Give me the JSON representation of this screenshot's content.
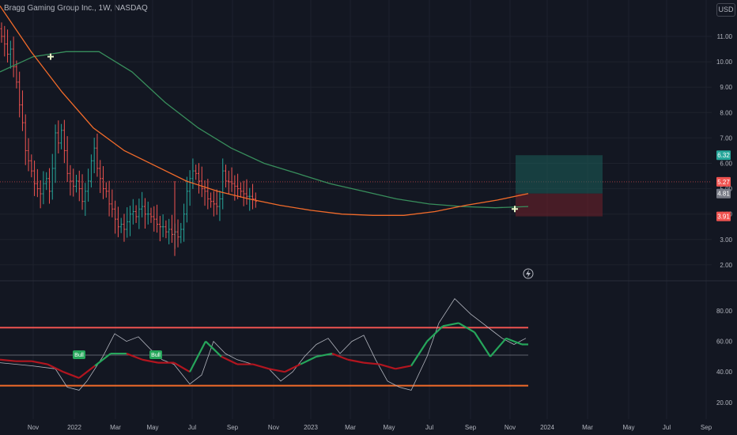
{
  "header": {
    "title": "Bragg Gaming Group Inc., 1W, NASDAQ",
    "currency": "USD"
  },
  "colors": {
    "background": "#131722",
    "up": "#26a69a",
    "down": "#ef5350",
    "ma_fast": "#f26b2a",
    "ma_slow": "#388e5c",
    "indicator_green": "#26a65b",
    "indicator_red": "#b2151f",
    "indicator_grey": "#b2b5be",
    "target_zone": "#1b5e5a",
    "stop_zone": "#6b1f2a"
  },
  "icons": {
    "lightning": "lightning-icon"
  },
  "chart_data": [
    {
      "type": "candlestick",
      "title": "Bragg Gaming Group Inc., 1W, NASDAQ",
      "ylim": [
        1.5,
        11.8
      ],
      "y_ticks": [
        "11.00",
        "10.00",
        "9.00",
        "8.00",
        "7.00",
        "6.00",
        "5.00",
        "4.00",
        "3.00",
        "2.00"
      ],
      "x_ticks": [
        "Nov",
        "2022",
        "Mar",
        "May",
        "Jul",
        "Sep",
        "Nov",
        "2023",
        "Mar",
        "May",
        "Jul",
        "Sep",
        "Nov",
        "2024",
        "Mar",
        "May",
        "Jul",
        "Sep"
      ],
      "price_labels": [
        {
          "text": "6.32",
          "value": 6.32,
          "color": "#26a69a"
        },
        {
          "text": "5.27",
          "value": 5.27,
          "color": "#ef5350"
        },
        {
          "text": "4.81",
          "value": 4.81,
          "color": "#787b86"
        },
        {
          "text": "3.91",
          "value": 3.91,
          "color": "#ef5350"
        }
      ],
      "current_price": 5.27,
      "position": {
        "target": 6.32,
        "entry": 4.81,
        "stop": 3.91
      },
      "series": [
        {
          "name": "",
          "kind": "close_path",
          "x": [
            0,
            2,
            4,
            6,
            8,
            10,
            12,
            14,
            16,
            18,
            20,
            22,
            24,
            26,
            28,
            30,
            32,
            34,
            36,
            38,
            40,
            42,
            44,
            46,
            48,
            50,
            52,
            54,
            56,
            58,
            60,
            62,
            64,
            66,
            68,
            70,
            72,
            74,
            76,
            78,
            80,
            82,
            84,
            86,
            88,
            90,
            92,
            94,
            96,
            98,
            100,
            102,
            104,
            106,
            108,
            110,
            112,
            114,
            116,
            118,
            120,
            122,
            124,
            126,
            128,
            130,
            132,
            134,
            136,
            138,
            140,
            142,
            144,
            146,
            148,
            150,
            152,
            154,
            156,
            158,
            160,
            162,
            164,
            166,
            168,
            170,
            172,
            174,
            176,
            178,
            180,
            182,
            184,
            186,
            188,
            190,
            192,
            194,
            196,
            198,
            200,
            202,
            204,
            206,
            208,
            210,
            212,
            214,
            216,
            218,
            220
          ],
          "y": [
            11.0,
            10.7,
            10.3,
            10.5,
            9.8,
            9.2,
            8.3,
            7.6,
            6.5,
            6.1,
            5.7,
            5.2,
            5.0,
            4.8,
            5.2,
            5.4,
            4.9,
            5.8,
            7.2,
            6.8,
            7.3,
            6.5,
            5.6,
            5.3,
            5.1,
            5.3,
            5.0,
            4.5,
            4.9,
            5.3,
            6.1,
            6.6,
            5.8,
            5.4,
            5.0,
            4.9,
            4.4,
            4.2,
            3.8,
            3.5,
            3.6,
            3.4,
            3.7,
            4.0,
            4.1,
            3.9,
            4.2,
            4.3,
            4.0,
            4.0,
            3.9,
            3.8,
            3.6,
            3.5,
            3.5,
            3.3,
            3.4,
            3.2,
            3.3,
            3.1,
            3.4,
            4.0,
            4.9,
            5.4,
            5.7,
            5.6,
            5.3,
            5.0,
            4.9,
            4.6,
            4.5,
            4.4,
            4.3,
            4.6,
            5.7,
            5.3,
            5.27,
            5.2,
            5.1,
            5.0,
            4.9,
            4.8,
            4.7,
            4.7,
            4.6,
            4.5,
            4.5,
            4.4,
            4.4,
            4.3,
            4.3,
            4.2,
            4.2,
            4.2,
            4.1,
            4.1,
            4.1,
            4.1,
            4.0,
            4.0,
            4.0,
            4.0,
            4.0,
            4.0,
            4.0,
            4.0,
            4.0,
            4.0,
            4.0,
            4.0,
            4.0
          ]
        },
        {
          "name": "",
          "kind": "ma_fast",
          "y": [
            12.2,
            10.4,
            8.8,
            7.4,
            6.5,
            5.9,
            5.3,
            4.9,
            4.6,
            4.35,
            4.15,
            4.0,
            3.95,
            3.95,
            4.1,
            4.35,
            4.55,
            4.81
          ]
        },
        {
          "name": "",
          "kind": "ma_slow",
          "y": [
            9.6,
            10.2,
            10.4,
            10.4,
            9.6,
            8.4,
            7.4,
            6.6,
            6.0,
            5.6,
            5.2,
            4.9,
            4.6,
            4.4,
            4.3,
            4.25,
            4.3
          ]
        }
      ]
    },
    {
      "type": "line",
      "ylim": [
        15,
        90
      ],
      "y_ticks": [
        "80.00",
        "60.00",
        "40.00",
        "20.00"
      ],
      "reference_levels": [
        69,
        51,
        31
      ],
      "tags": [
        {
          "text": "Bull",
          "x": 100,
          "y": 46
        },
        {
          "text": "Bull",
          "x": 197,
          "y": 46
        }
      ],
      "series": [
        {
          "name": "",
          "kind": "oscillator_grey",
          "x": [
            0,
            40,
            70,
            85,
            100,
            110,
            130,
            145,
            160,
            175,
            190,
            205,
            220,
            240,
            255,
            270,
            285,
            300,
            320,
            340,
            355,
            370,
            385,
            400,
            415,
            430,
            445,
            460,
            475,
            490,
            505,
            520,
            540,
            555,
            575,
            595,
            610,
            625,
            635,
            650,
            665
          ],
          "y": [
            46,
            44,
            42,
            30,
            28,
            34,
            50,
            65,
            60,
            63,
            55,
            48,
            45,
            32,
            38,
            60,
            52,
            48,
            45,
            42,
            34,
            40,
            50,
            58,
            62,
            52,
            60,
            64,
            48,
            34,
            30,
            28,
            50,
            72,
            88,
            78,
            72,
            66,
            62,
            58,
            62
          ]
        },
        {
          "name": "",
          "kind": "oscillator_signal",
          "x": [
            0,
            20,
            40,
            60,
            80,
            100,
            120,
            140,
            160,
            180,
            200,
            220,
            240,
            260,
            280,
            300,
            320,
            340,
            360,
            380,
            400,
            420,
            440,
            460,
            480,
            500,
            520,
            540,
            560,
            580,
            600,
            620,
            640,
            660,
            668
          ],
          "y": [
            48,
            47,
            47,
            45,
            40,
            36,
            44,
            52,
            52,
            48,
            46,
            46,
            40,
            60,
            50,
            45,
            45,
            42,
            40,
            45,
            50,
            52,
            48,
            46,
            45,
            42,
            44,
            60,
            70,
            72,
            66,
            50,
            62,
            58,
            58
          ]
        }
      ]
    }
  ]
}
